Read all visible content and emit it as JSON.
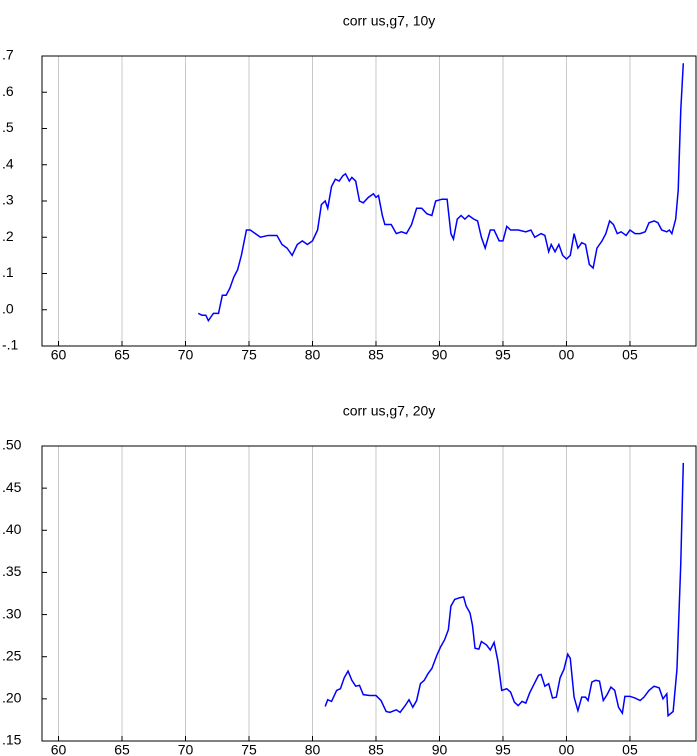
{
  "chart_data": [
    {
      "type": "line",
      "title": "corr us,g7, 10y",
      "x": [
        1971.0,
        1971.3,
        1971.6,
        1971.8,
        1972.0,
        1972.2,
        1972.6,
        1972.9,
        1973.2,
        1973.5,
        1973.8,
        1974.1,
        1974.4,
        1974.8,
        1975.1,
        1975.5,
        1975.9,
        1976.5,
        1977.2,
        1977.6,
        1978.0,
        1978.4,
        1978.8,
        1979.2,
        1979.6,
        1980.0,
        1980.4,
        1980.7,
        1981.0,
        1981.2,
        1981.5,
        1981.8,
        1982.1,
        1982.4,
        1982.6,
        1982.9,
        1983.1,
        1983.4,
        1983.7,
        1984.0,
        1984.4,
        1984.8,
        1985.0,
        1985.2,
        1985.5,
        1985.7,
        1986.2,
        1986.6,
        1987.0,
        1987.4,
        1987.8,
        1988.2,
        1988.6,
        1989.0,
        1989.4,
        1989.7,
        1990.2,
        1990.6,
        1990.9,
        1991.1,
        1991.4,
        1991.7,
        1992.0,
        1992.3,
        1992.7,
        1993.0,
        1993.3,
        1993.6,
        1994.0,
        1994.3,
        1994.7,
        1995.0,
        1995.3,
        1995.6,
        1996.2,
        1996.8,
        1997.2,
        1997.5,
        1998.0,
        1998.3,
        1998.6,
        1998.8,
        1999.1,
        1999.4,
        1999.7,
        2000.0,
        2000.3,
        2000.6,
        2000.9,
        2001.2,
        2001.5,
        2001.8,
        2002.1,
        2002.4,
        2002.8,
        2003.1,
        2003.4,
        2003.7,
        2004.0,
        2004.3,
        2004.7,
        2005.0,
        2005.4,
        2005.8,
        2006.2,
        2006.5,
        2006.9,
        2007.2,
        2007.5,
        2007.9,
        2008.1,
        2008.3,
        2008.6,
        2008.8,
        2009.0,
        2009.2
      ],
      "series": [
        {
          "name": "corr us,g7, 10y",
          "color": "#0000ff",
          "values": [
            -0.01,
            -0.015,
            -0.015,
            -0.03,
            -0.02,
            -0.01,
            -0.01,
            0.04,
            0.04,
            0.06,
            0.09,
            0.11,
            0.15,
            0.22,
            0.22,
            0.21,
            0.2,
            0.205,
            0.205,
            0.18,
            0.17,
            0.15,
            0.18,
            0.19,
            0.18,
            0.19,
            0.22,
            0.29,
            0.3,
            0.28,
            0.34,
            0.36,
            0.355,
            0.37,
            0.375,
            0.355,
            0.365,
            0.355,
            0.3,
            0.295,
            0.31,
            0.32,
            0.31,
            0.315,
            0.26,
            0.235,
            0.235,
            0.21,
            0.215,
            0.21,
            0.235,
            0.28,
            0.28,
            0.265,
            0.26,
            0.3,
            0.305,
            0.305,
            0.21,
            0.195,
            0.25,
            0.26,
            0.25,
            0.26,
            0.25,
            0.245,
            0.2,
            0.17,
            0.22,
            0.22,
            0.19,
            0.19,
            0.23,
            0.22,
            0.22,
            0.215,
            0.22,
            0.2,
            0.21,
            0.205,
            0.16,
            0.18,
            0.16,
            0.18,
            0.15,
            0.14,
            0.15,
            0.21,
            0.17,
            0.185,
            0.18,
            0.125,
            0.115,
            0.17,
            0.19,
            0.21,
            0.245,
            0.235,
            0.21,
            0.215,
            0.205,
            0.22,
            0.21,
            0.21,
            0.215,
            0.24,
            0.245,
            0.24,
            0.22,
            0.215,
            0.22,
            0.21,
            0.25,
            0.33,
            0.55,
            0.68
          ]
        }
      ],
      "xlim": [
        1958.7,
        2010.2
      ],
      "xticks": [
        {
          "value": 1960,
          "label": "60"
        },
        {
          "value": 1965,
          "label": "65"
        },
        {
          "value": 1970,
          "label": "70"
        },
        {
          "value": 1975,
          "label": "75"
        },
        {
          "value": 1980,
          "label": "80"
        },
        {
          "value": 1985,
          "label": "85"
        },
        {
          "value": 1990,
          "label": "90"
        },
        {
          "value": 1995,
          "label": "95"
        },
        {
          "value": 2000,
          "label": "00"
        },
        {
          "value": 2005,
          "label": "05"
        }
      ],
      "ylim": [
        -0.1,
        0.7
      ],
      "yticks": [
        {
          "value": -0.1,
          "label": "-.1"
        },
        {
          "value": 0,
          "label": ".0"
        },
        {
          "value": 0.1,
          "label": ".1"
        },
        {
          "value": 0.2,
          "label": ".2"
        },
        {
          "value": 0.3,
          "label": ".3"
        },
        {
          "value": 0.4,
          "label": ".4"
        },
        {
          "value": 0.5,
          "label": ".5"
        },
        {
          "value": 0.6,
          "label": ".6"
        },
        {
          "value": 0.7,
          "label": ".7"
        }
      ],
      "grid": true
    },
    {
      "type": "line",
      "title": "corr us,g7, 20y",
      "x": [
        1981.0,
        1981.2,
        1981.5,
        1981.9,
        1982.2,
        1982.5,
        1982.8,
        1983.1,
        1983.4,
        1983.7,
        1984.0,
        1984.5,
        1985.0,
        1985.4,
        1985.8,
        1986.1,
        1986.6,
        1986.9,
        1987.3,
        1987.6,
        1987.9,
        1988.2,
        1988.5,
        1988.8,
        1989.1,
        1989.4,
        1989.8,
        1990.1,
        1990.4,
        1990.7,
        1990.9,
        1991.2,
        1991.6,
        1991.9,
        1992.1,
        1992.4,
        1992.6,
        1992.8,
        1993.1,
        1993.3,
        1993.7,
        1994.0,
        1994.3,
        1994.6,
        1994.9,
        1995.3,
        1995.6,
        1995.9,
        1996.2,
        1996.5,
        1996.8,
        1997.1,
        1997.5,
        1997.8,
        1998.0,
        1998.3,
        1998.6,
        1998.9,
        1999.2,
        1999.5,
        1999.8,
        2000.1,
        2000.3,
        2000.6,
        2000.9,
        2001.2,
        2001.5,
        2001.7,
        2002.0,
        2002.3,
        2002.6,
        2002.9,
        2003.2,
        2003.5,
        2003.8,
        2004.1,
        2004.4,
        2004.6,
        2005.0,
        2005.4,
        2005.8,
        2006.1,
        2006.5,
        2006.9,
        2007.3,
        2007.6,
        2007.9,
        2008.0,
        2008.4,
        2008.7,
        2009.0,
        2009.2
      ],
      "series": [
        {
          "name": "corr us,g7, 20y",
          "color": "#0000ff",
          "values": [
            0.191,
            0.199,
            0.197,
            0.21,
            0.212,
            0.225,
            0.233,
            0.222,
            0.215,
            0.216,
            0.205,
            0.204,
            0.204,
            0.198,
            0.185,
            0.184,
            0.187,
            0.184,
            0.192,
            0.199,
            0.19,
            0.198,
            0.218,
            0.222,
            0.23,
            0.236,
            0.252,
            0.262,
            0.27,
            0.282,
            0.31,
            0.318,
            0.32,
            0.321,
            0.31,
            0.302,
            0.287,
            0.26,
            0.259,
            0.268,
            0.264,
            0.258,
            0.267,
            0.245,
            0.21,
            0.212,
            0.208,
            0.196,
            0.192,
            0.197,
            0.195,
            0.207,
            0.219,
            0.228,
            0.229,
            0.215,
            0.218,
            0.201,
            0.202,
            0.225,
            0.235,
            0.253,
            0.248,
            0.202,
            0.186,
            0.202,
            0.202,
            0.198,
            0.22,
            0.222,
            0.221,
            0.198,
            0.205,
            0.214,
            0.21,
            0.19,
            0.183,
            0.203,
            0.203,
            0.201,
            0.198,
            0.202,
            0.21,
            0.215,
            0.213,
            0.2,
            0.206,
            0.18,
            0.185,
            0.235,
            0.36,
            0.48
          ]
        }
      ],
      "xlim": [
        1958.7,
        2010.2
      ],
      "xticks": [
        {
          "value": 1960,
          "label": "60"
        },
        {
          "value": 1965,
          "label": "65"
        },
        {
          "value": 1970,
          "label": "70"
        },
        {
          "value": 1975,
          "label": "75"
        },
        {
          "value": 1980,
          "label": "80"
        },
        {
          "value": 1985,
          "label": "85"
        },
        {
          "value": 1990,
          "label": "90"
        },
        {
          "value": 1995,
          "label": "95"
        },
        {
          "value": 2000,
          "label": "00"
        },
        {
          "value": 2005,
          "label": "05"
        }
      ],
      "ylim": [
        0.15,
        0.5
      ],
      "yticks": [
        {
          "value": 0.15,
          "label": ".15"
        },
        {
          "value": 0.2,
          "label": ".20"
        },
        {
          "value": 0.25,
          "label": ".25"
        },
        {
          "value": 0.3,
          "label": ".30"
        },
        {
          "value": 0.35,
          "label": ".35"
        },
        {
          "value": 0.4,
          "label": ".40"
        },
        {
          "value": 0.45,
          "label": ".45"
        },
        {
          "value": 0.5,
          "label": ".50"
        }
      ],
      "grid": true
    }
  ]
}
